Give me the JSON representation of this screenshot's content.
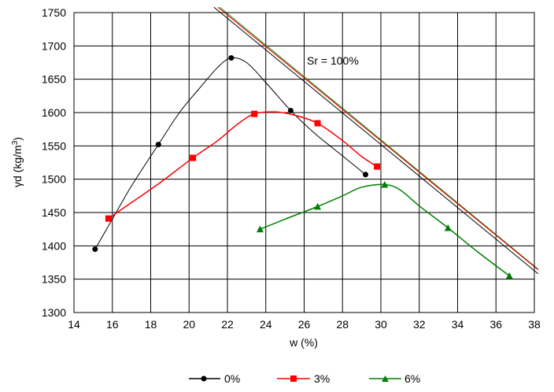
{
  "chart_data": {
    "type": "line",
    "xlabel": "w (%)",
    "ylabel": "γd (kg/m³)",
    "ylabel_parts": {
      "base": "γd (kg/m",
      "sup": "3",
      "end": ")"
    },
    "xlim": [
      14,
      38
    ],
    "ylim": [
      1300,
      1750
    ],
    "x_ticks": [
      14,
      16,
      18,
      20,
      22,
      24,
      26,
      28,
      30,
      32,
      34,
      36,
      38
    ],
    "y_ticks": [
      1300,
      1350,
      1400,
      1450,
      1500,
      1550,
      1600,
      1650,
      1700,
      1750
    ],
    "grid": true,
    "legend_position": "bottom",
    "annotation": "Sr = 100%",
    "series": [
      {
        "name": "0%",
        "color": "#000000",
        "marker": "circle",
        "points": [
          [
            15.1,
            1395
          ],
          [
            18.4,
            1552
          ],
          [
            22.2,
            1682
          ],
          [
            25.3,
            1603
          ],
          [
            29.2,
            1507
          ]
        ],
        "curve": [
          [
            15.1,
            1395
          ],
          [
            16.0,
            1440
          ],
          [
            17.0,
            1490
          ],
          [
            18.4,
            1552
          ],
          [
            19.5,
            1600
          ],
          [
            20.5,
            1635
          ],
          [
            21.5,
            1668
          ],
          [
            22.2,
            1682
          ],
          [
            23.0,
            1675
          ],
          [
            24.0,
            1645
          ],
          [
            25.3,
            1603
          ],
          [
            26.5,
            1570
          ],
          [
            28.0,
            1535
          ],
          [
            29.2,
            1507
          ]
        ]
      },
      {
        "name": "3%",
        "color": "#ff0000",
        "marker": "square",
        "points": [
          [
            15.8,
            1441
          ],
          [
            20.2,
            1532
          ],
          [
            23.4,
            1598
          ],
          [
            26.7,
            1584
          ],
          [
            29.8,
            1519
          ]
        ],
        "curve": [
          [
            15.8,
            1441
          ],
          [
            17.0,
            1465
          ],
          [
            18.5,
            1495
          ],
          [
            20.2,
            1532
          ],
          [
            21.5,
            1558
          ],
          [
            22.5,
            1582
          ],
          [
            23.4,
            1598
          ],
          [
            24.5,
            1601
          ],
          [
            25.5,
            1596
          ],
          [
            26.7,
            1584
          ],
          [
            28.0,
            1558
          ],
          [
            29.0,
            1534
          ],
          [
            29.8,
            1519
          ]
        ]
      },
      {
        "name": "6%",
        "color": "#008000",
        "marker": "triangle",
        "points": [
          [
            23.7,
            1425
          ],
          [
            26.7,
            1459
          ],
          [
            30.2,
            1492
          ],
          [
            33.5,
            1427
          ],
          [
            36.7,
            1355
          ]
        ],
        "curve": [
          [
            23.7,
            1425
          ],
          [
            25.0,
            1440
          ],
          [
            26.7,
            1459
          ],
          [
            28.0,
            1475
          ],
          [
            29.0,
            1488
          ],
          [
            30.2,
            1492
          ],
          [
            31.0,
            1484
          ],
          [
            32.0,
            1460
          ],
          [
            33.5,
            1427
          ],
          [
            35.0,
            1392
          ],
          [
            36.7,
            1355
          ]
        ]
      }
    ],
    "saturation_lines": [
      {
        "color": "#008000",
        "points": [
          [
            21.6,
            1758
          ],
          [
            38.2,
            1365
          ]
        ]
      },
      {
        "color": "#ff0000",
        "points": [
          [
            21.5,
            1758
          ],
          [
            38.2,
            1364
          ]
        ]
      },
      {
        "color": "#000000",
        "points": [
          [
            21.3,
            1758
          ],
          [
            38.2,
            1358
          ]
        ]
      }
    ]
  }
}
